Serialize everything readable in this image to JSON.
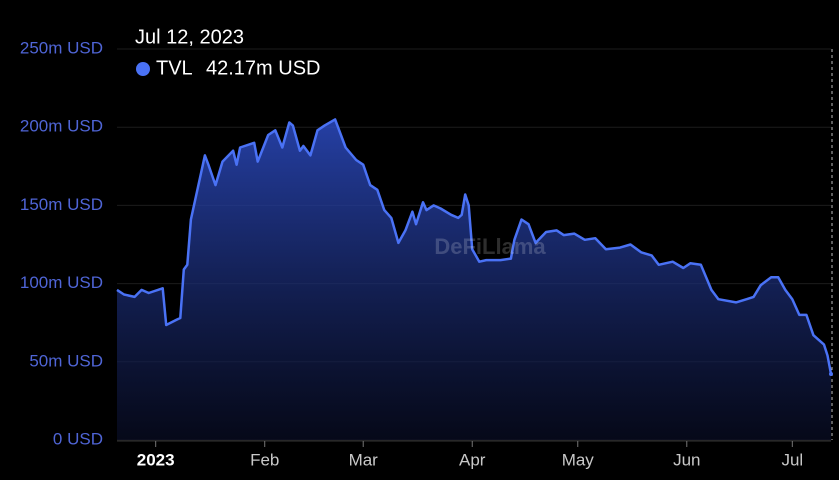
{
  "chart_data": {
    "type": "area",
    "watermark": "DeFiLlama",
    "tooltip": {
      "date": "Jul 12, 2023",
      "value": 42.17,
      "value_label": "42.17m USD"
    },
    "x": [
      "2022-12-21",
      "2022-12-23",
      "2022-12-26",
      "2022-12-28",
      "2022-12-30",
      "2023-01-03",
      "2023-01-04",
      "2023-01-07",
      "2023-01-08",
      "2023-01-09",
      "2023-01-10",
      "2023-01-11",
      "2023-01-15",
      "2023-01-16",
      "2023-01-18",
      "2023-01-20",
      "2023-01-23",
      "2023-01-24",
      "2023-01-25",
      "2023-01-29",
      "2023-01-30",
      "2023-02-02",
      "2023-02-04",
      "2023-02-06",
      "2023-02-08",
      "2023-02-09",
      "2023-02-11",
      "2023-02-12",
      "2023-02-14",
      "2023-02-16",
      "2023-02-18",
      "2023-02-21",
      "2023-02-24",
      "2023-02-27",
      "2023-03-01",
      "2023-03-03",
      "2023-03-05",
      "2023-03-07",
      "2023-03-09",
      "2023-03-11",
      "2023-03-13",
      "2023-03-15",
      "2023-03-16",
      "2023-03-18",
      "2023-03-19",
      "2023-03-21",
      "2023-03-23",
      "2023-03-26",
      "2023-03-28",
      "2023-03-29",
      "2023-03-30",
      "2023-03-31",
      "2023-04-01",
      "2023-04-03",
      "2023-04-05",
      "2023-04-09",
      "2023-04-12",
      "2023-04-13",
      "2023-04-15",
      "2023-04-17",
      "2023-04-19",
      "2023-04-22",
      "2023-04-25",
      "2023-04-27",
      "2023-04-30",
      "2023-05-03",
      "2023-05-06",
      "2023-05-09",
      "2023-05-13",
      "2023-05-16",
      "2023-05-19",
      "2023-05-22",
      "2023-05-24",
      "2023-05-28",
      "2023-05-31",
      "2023-06-02",
      "2023-06-05",
      "2023-06-08",
      "2023-06-10",
      "2023-06-15",
      "2023-06-18",
      "2023-06-20",
      "2023-06-22",
      "2023-06-25",
      "2023-06-27",
      "2023-06-29",
      "2023-07-01",
      "2023-07-03",
      "2023-07-05",
      "2023-07-07",
      "2023-07-10",
      "2023-07-11",
      "2023-07-12"
    ],
    "series": [
      {
        "name": "TVL",
        "color": "#4a72f5",
        "values": [
          96,
          93,
          91.5,
          96,
          94,
          97,
          73.5,
          77,
          78,
          109,
          112,
          141,
          182,
          176,
          163,
          178,
          185,
          176,
          187,
          190,
          178,
          195,
          198,
          187,
          203,
          201,
          185,
          188,
          182,
          198,
          201,
          205,
          187,
          179,
          176,
          163,
          160,
          147,
          142,
          126,
          134,
          146,
          138,
          152,
          147,
          150,
          148,
          144,
          142,
          144,
          157,
          150,
          122,
          114,
          115,
          115,
          116,
          128,
          141,
          138,
          126,
          133,
          134,
          131,
          132,
          128,
          129,
          122,
          123,
          125,
          120,
          118,
          112,
          114,
          110,
          113,
          112,
          96,
          90,
          88,
          90,
          91.5,
          99,
          104,
          104,
          96,
          90,
          80,
          80,
          67,
          61,
          54,
          42.17
        ]
      }
    ],
    "xlim": [
      "2022-12-21",
      "2023-07-12"
    ],
    "xticks": [
      {
        "value": "2023-01-01",
        "label": "2023"
      },
      {
        "value": "2023-02-01",
        "label": "Feb"
      },
      {
        "value": "2023-03-01",
        "label": "Mar"
      },
      {
        "value": "2023-04-01",
        "label": "Apr"
      },
      {
        "value": "2023-05-01",
        "label": "May"
      },
      {
        "value": "2023-06-01",
        "label": "Jun"
      },
      {
        "value": "2023-07-01",
        "label": "Jul"
      }
    ],
    "ylim": [
      0,
      250
    ],
    "yticks": [
      {
        "value": 0,
        "label": "0 USD"
      },
      {
        "value": 50,
        "label": "50m USD"
      },
      {
        "value": 100,
        "label": "100m USD"
      },
      {
        "value": 150,
        "label": "150m USD"
      },
      {
        "value": 200,
        "label": "200m USD"
      },
      {
        "value": 250,
        "label": "250m USD"
      }
    ],
    "grid": true
  }
}
